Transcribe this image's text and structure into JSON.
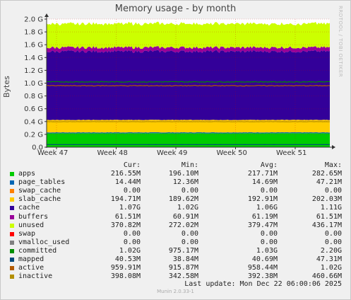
{
  "title": "Memory usage - by month",
  "side_label": "RRDTOOL / TOBI OETIKER",
  "footer": "Munin 2.0.33-1",
  "last_update": "Last update:  Mon Dec 22 06:00:06 2025",
  "columns": [
    "Cur:",
    "Min:",
    "Avg:",
    "Max:"
  ],
  "chart_data": {
    "type": "area",
    "title": "Memory usage - by month",
    "ylabel": "Bytes",
    "ylim": [
      0,
      2000000000
    ],
    "yticks": [
      "0.0",
      "0.2 G",
      "0.4 G",
      "0.6 G",
      "0.8 G",
      "1.0 G",
      "1.2 G",
      "1.4 G",
      "1.6 G",
      "1.8 G",
      "2.0 G"
    ],
    "xticks": [
      "Week 47",
      "Week 48",
      "Week 49",
      "Week 50",
      "Week 51"
    ],
    "grid": true,
    "stacked_series": [
      {
        "name": "apps",
        "color": "#00cc00",
        "value": 216550000
      },
      {
        "name": "page_tables",
        "color": "#0066b3",
        "value": 14440000
      },
      {
        "name": "swap_cache",
        "color": "#ff8000",
        "value": 0
      },
      {
        "name": "slab_cache",
        "color": "#ffcc00",
        "value": 194710000
      },
      {
        "name": "cache",
        "color": "#330099",
        "value": 1070000000
      },
      {
        "name": "buffers",
        "color": "#990099",
        "value": 61510000
      },
      {
        "name": "unused",
        "color": "#ccff00",
        "value": 370820000
      },
      {
        "name": "swap",
        "color": "#ff0000",
        "value": 0
      }
    ],
    "line_series": [
      {
        "name": "vmalloc_used",
        "color": "#808080",
        "value": 0
      },
      {
        "name": "committed",
        "color": "#008f00",
        "value": 1020000000
      },
      {
        "name": "mapped",
        "color": "#00487d",
        "value": 40530000
      },
      {
        "name": "active",
        "color": "#b35a00",
        "value": 959910000
      },
      {
        "name": "inactive",
        "color": "#b38f00",
        "value": 398080000
      }
    ]
  },
  "legend": [
    {
      "name": "apps",
      "color": "#00cc00",
      "cur": "216.55M",
      "min": "196.10M",
      "avg": "217.71M",
      "max": "282.65M"
    },
    {
      "name": "page_tables",
      "color": "#0066b3",
      "cur": "14.44M",
      "min": "12.36M",
      "avg": "14.69M",
      "max": "47.21M"
    },
    {
      "name": "swap_cache",
      "color": "#ff8000",
      "cur": "0.00",
      "min": "0.00",
      "avg": "0.00",
      "max": "0.00"
    },
    {
      "name": "slab_cache",
      "color": "#ffcc00",
      "cur": "194.71M",
      "min": "189.62M",
      "avg": "192.91M",
      "max": "202.03M"
    },
    {
      "name": "cache",
      "color": "#330099",
      "cur": "1.07G",
      "min": "1.02G",
      "avg": "1.06G",
      "max": "1.11G"
    },
    {
      "name": "buffers",
      "color": "#990099",
      "cur": "61.51M",
      "min": "60.91M",
      "avg": "61.19M",
      "max": "61.51M"
    },
    {
      "name": "unused",
      "color": "#ccff00",
      "cur": "370.82M",
      "min": "272.02M",
      "avg": "379.47M",
      "max": "436.17M"
    },
    {
      "name": "swap",
      "color": "#ff0000",
      "cur": "0.00",
      "min": "0.00",
      "avg": "0.00",
      "max": "0.00"
    },
    {
      "name": "vmalloc_used",
      "color": "#808080",
      "cur": "0.00",
      "min": "0.00",
      "avg": "0.00",
      "max": "0.00"
    },
    {
      "name": "committed",
      "color": "#008f00",
      "cur": "1.02G",
      "min": "975.17M",
      "avg": "1.03G",
      "max": "2.20G"
    },
    {
      "name": "mapped",
      "color": "#00487d",
      "cur": "40.53M",
      "min": "38.84M",
      "avg": "40.69M",
      "max": "47.31M"
    },
    {
      "name": "active",
      "color": "#b35a00",
      "cur": "959.91M",
      "min": "915.87M",
      "avg": "958.44M",
      "max": "1.02G"
    },
    {
      "name": "inactive",
      "color": "#b38f00",
      "cur": "398.08M",
      "min": "342.58M",
      "avg": "392.38M",
      "max": "460.66M"
    }
  ]
}
